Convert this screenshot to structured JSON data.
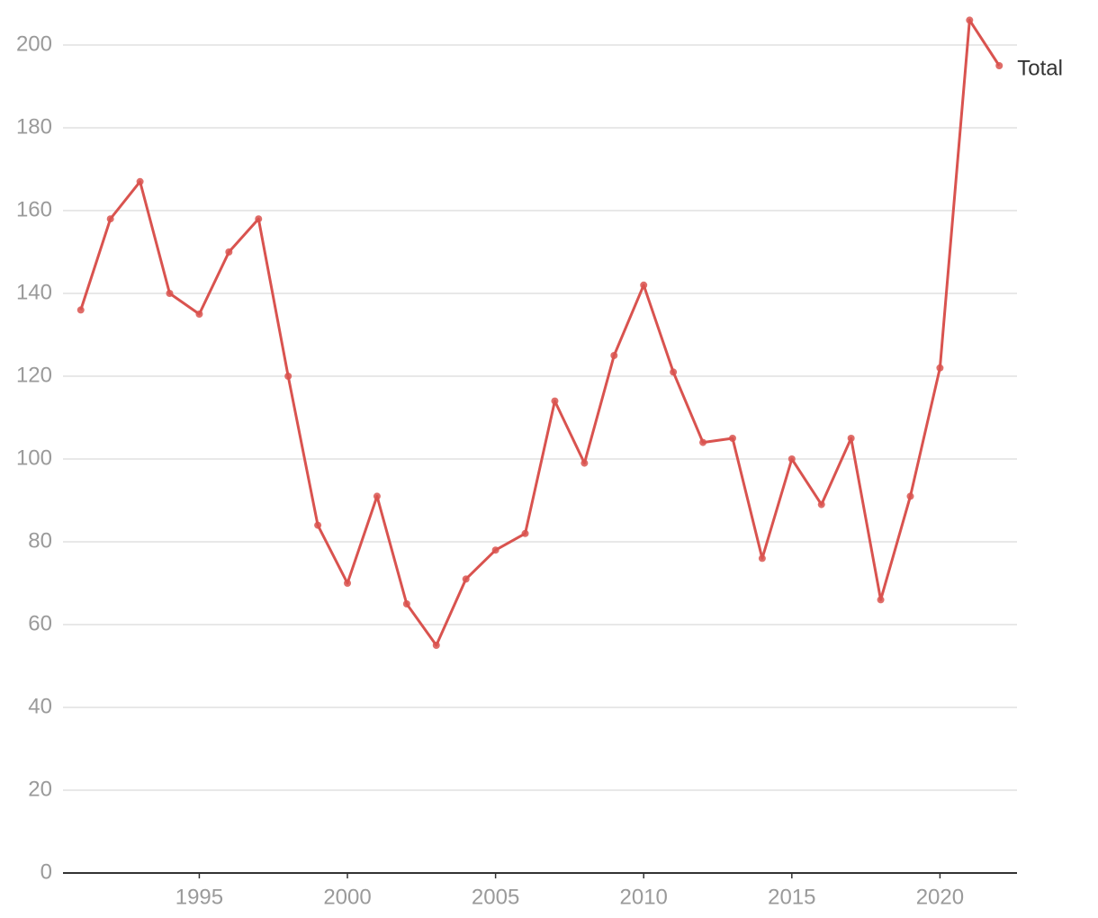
{
  "chart_data": {
    "type": "line",
    "x": [
      1991,
      1992,
      1993,
      1994,
      1995,
      1996,
      1997,
      1998,
      1999,
      2000,
      2001,
      2002,
      2003,
      2004,
      2005,
      2006,
      2007,
      2008,
      2009,
      2010,
      2011,
      2012,
      2013,
      2014,
      2015,
      2016,
      2017,
      2018,
      2019,
      2020,
      2021,
      2022
    ],
    "series": [
      {
        "name": "Total",
        "color": "#d9534f",
        "values": [
          136,
          158,
          167,
          140,
          135,
          150,
          158,
          120,
          84,
          70,
          91,
          65,
          55,
          71,
          78,
          82,
          114,
          99,
          125,
          142,
          121,
          104,
          105,
          76,
          100,
          89,
          105,
          66,
          91,
          122,
          206,
          195
        ]
      }
    ],
    "xlim": [
      1990.4,
      2022.6
    ],
    "xticks": [
      1995,
      2000,
      2005,
      2010,
      2015,
      2020
    ],
    "ylim": [
      0,
      208
    ],
    "yticks": [
      0,
      20,
      40,
      60,
      80,
      100,
      120,
      140,
      160,
      180,
      200
    ],
    "grid": true
  }
}
